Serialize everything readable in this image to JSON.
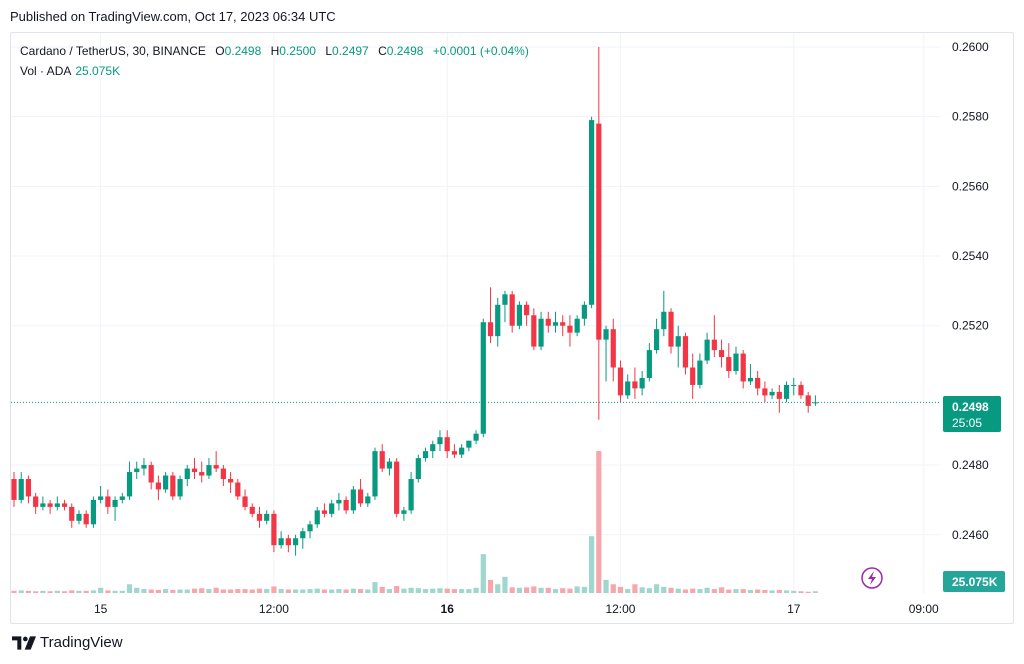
{
  "header": {
    "published": "Published on TradingView.com, Oct 17, 2023 06:34 UTC"
  },
  "legend": {
    "symbol": "Cardano / TetherUS, 30, BINANCE",
    "o_label": "O",
    "o_value": "0.2498",
    "h_label": "H",
    "h_value": "0.2500",
    "l_label": "L",
    "l_value": "0.2497",
    "c_label": "C",
    "c_value": "0.2498",
    "change": "+0.0001 (+0.04%)",
    "vol_label": "Vol · ADA",
    "vol_value": "25.075K"
  },
  "badges": {
    "price": "0.2498",
    "countdown": "25:05",
    "volume": "25.075K"
  },
  "brand": {
    "name": "TradingView"
  },
  "colors": {
    "up": "#089981",
    "down": "#f23645",
    "up_vol": "#9fd6cd",
    "down_vol": "#f7a6ac",
    "grid": "#f0f3fa",
    "text": "#131722",
    "flash": "#9c27b0"
  },
  "icons": {
    "flash": "lightning-icon",
    "logo": "tradingview-logo-icon"
  },
  "chart_data": {
    "type": "candlestick",
    "y_ticks": [
      "0.2600",
      "0.2580",
      "0.2560",
      "0.2540",
      "0.2520",
      "0.2480",
      "0.2460"
    ],
    "ylim": [
      0.2443,
      0.2604
    ],
    "x_ticks": [
      {
        "label": "15",
        "bold": false,
        "i": 12
      },
      {
        "label": "12:00",
        "bold": false,
        "i": 36
      },
      {
        "label": "16",
        "bold": true,
        "i": 60
      },
      {
        "label": "12:00",
        "bold": false,
        "i": 84
      },
      {
        "label": "17",
        "bold": false,
        "i": 108
      },
      {
        "label": "09:00",
        "bold": false,
        "i": 126
      }
    ],
    "last_price": 0.2498,
    "candles": [
      [
        0.2476,
        0.2478,
        0.2468,
        0.247
      ],
      [
        0.247,
        0.2478,
        0.2469,
        0.2476
      ],
      [
        0.2476,
        0.2477,
        0.2469,
        0.2471
      ],
      [
        0.2471,
        0.2472,
        0.2466,
        0.2468
      ],
      [
        0.2468,
        0.2471,
        0.2467,
        0.2469
      ],
      [
        0.2469,
        0.247,
        0.2466,
        0.2468
      ],
      [
        0.2468,
        0.2471,
        0.2467,
        0.2469
      ],
      [
        0.2469,
        0.247,
        0.2467,
        0.2468
      ],
      [
        0.2468,
        0.2469,
        0.2462,
        0.2464
      ],
      [
        0.2464,
        0.2467,
        0.2463,
        0.2466
      ],
      [
        0.2466,
        0.2467,
        0.2462,
        0.2463
      ],
      [
        0.2463,
        0.2471,
        0.2462,
        0.247
      ],
      [
        0.247,
        0.2474,
        0.2469,
        0.2471
      ],
      [
        0.2471,
        0.2473,
        0.2466,
        0.2468
      ],
      [
        0.2468,
        0.2471,
        0.2464,
        0.247
      ],
      [
        0.247,
        0.2472,
        0.2469,
        0.2471
      ],
      [
        0.2471,
        0.2481,
        0.247,
        0.2478
      ],
      [
        0.2478,
        0.2481,
        0.2476,
        0.2479
      ],
      [
        0.2479,
        0.2482,
        0.2477,
        0.248
      ],
      [
        0.248,
        0.2481,
        0.2473,
        0.2475
      ],
      [
        0.2475,
        0.2477,
        0.247,
        0.2473
      ],
      [
        0.2473,
        0.2478,
        0.2472,
        0.2477
      ],
      [
        0.2477,
        0.2478,
        0.247,
        0.2471
      ],
      [
        0.2471,
        0.2477,
        0.247,
        0.2476
      ],
      [
        0.2476,
        0.248,
        0.2474,
        0.2479
      ],
      [
        0.2479,
        0.2482,
        0.2476,
        0.2478
      ],
      [
        0.2478,
        0.2481,
        0.2475,
        0.2477
      ],
      [
        0.2477,
        0.2482,
        0.2476,
        0.248
      ],
      [
        0.248,
        0.2484,
        0.2478,
        0.2479
      ],
      [
        0.2479,
        0.248,
        0.2474,
        0.2476
      ],
      [
        0.2476,
        0.2478,
        0.2472,
        0.2475
      ],
      [
        0.2475,
        0.2476,
        0.247,
        0.2471
      ],
      [
        0.2471,
        0.2473,
        0.2467,
        0.2468
      ],
      [
        0.2468,
        0.2469,
        0.2465,
        0.2466
      ],
      [
        0.2466,
        0.2468,
        0.2462,
        0.2464
      ],
      [
        0.2464,
        0.2467,
        0.2463,
        0.2466
      ],
      [
        0.2466,
        0.2467,
        0.2455,
        0.2457
      ],
      [
        0.2457,
        0.2461,
        0.2456,
        0.2459
      ],
      [
        0.2459,
        0.246,
        0.2455,
        0.2457
      ],
      [
        0.2457,
        0.246,
        0.2454,
        0.2459
      ],
      [
        0.2459,
        0.2462,
        0.2456,
        0.2461
      ],
      [
        0.2461,
        0.2464,
        0.2459,
        0.2463
      ],
      [
        0.2463,
        0.2468,
        0.2462,
        0.2467
      ],
      [
        0.2467,
        0.2469,
        0.2465,
        0.2466
      ],
      [
        0.2466,
        0.247,
        0.2465,
        0.2469
      ],
      [
        0.2469,
        0.2472,
        0.2467,
        0.247
      ],
      [
        0.247,
        0.2471,
        0.2466,
        0.2467
      ],
      [
        0.2467,
        0.2474,
        0.2466,
        0.2473
      ],
      [
        0.2473,
        0.2476,
        0.2468,
        0.2469
      ],
      [
        0.2469,
        0.2472,
        0.2468,
        0.2471
      ],
      [
        0.2471,
        0.2485,
        0.247,
        0.2484
      ],
      [
        0.2484,
        0.2486,
        0.2478,
        0.2479
      ],
      [
        0.2479,
        0.2482,
        0.2477,
        0.2481
      ],
      [
        0.2481,
        0.2482,
        0.2465,
        0.2466
      ],
      [
        0.2466,
        0.2468,
        0.2464,
        0.2467
      ],
      [
        0.2467,
        0.2478,
        0.2466,
        0.2476
      ],
      [
        0.2476,
        0.2483,
        0.2475,
        0.2482
      ],
      [
        0.2482,
        0.2485,
        0.2481,
        0.2484
      ],
      [
        0.2484,
        0.2487,
        0.2482,
        0.2486
      ],
      [
        0.2486,
        0.249,
        0.2484,
        0.2488
      ],
      [
        0.2488,
        0.249,
        0.2482,
        0.2484
      ],
      [
        0.2484,
        0.2486,
        0.2482,
        0.2483
      ],
      [
        0.2483,
        0.2486,
        0.2482,
        0.2485
      ],
      [
        0.2485,
        0.2487,
        0.2484,
        0.2487
      ],
      [
        0.2487,
        0.249,
        0.2486,
        0.2489
      ],
      [
        0.2489,
        0.2522,
        0.2488,
        0.2521
      ],
      [
        0.2521,
        0.2531,
        0.2515,
        0.2517
      ],
      [
        0.2517,
        0.2528,
        0.2514,
        0.2526
      ],
      [
        0.2526,
        0.253,
        0.2521,
        0.2529
      ],
      [
        0.2529,
        0.253,
        0.2518,
        0.252
      ],
      [
        0.252,
        0.2527,
        0.2519,
        0.2526
      ],
      [
        0.2526,
        0.2527,
        0.252,
        0.2523
      ],
      [
        0.2523,
        0.2525,
        0.2513,
        0.2514
      ],
      [
        0.2514,
        0.2524,
        0.2513,
        0.2522
      ],
      [
        0.2522,
        0.2524,
        0.2518,
        0.252
      ],
      [
        0.252,
        0.2524,
        0.2518,
        0.2521
      ],
      [
        0.2521,
        0.2523,
        0.2517,
        0.252
      ],
      [
        0.252,
        0.2523,
        0.2514,
        0.2518
      ],
      [
        0.2518,
        0.2523,
        0.2517,
        0.2522
      ],
      [
        0.2522,
        0.2527,
        0.252,
        0.2526
      ],
      [
        0.2526,
        0.258,
        0.2525,
        0.2579
      ],
      [
        0.2578,
        0.26,
        0.2493,
        0.2516
      ],
      [
        0.2516,
        0.252,
        0.2504,
        0.2519
      ],
      [
        0.2519,
        0.2522,
        0.2504,
        0.2508
      ],
      [
        0.2508,
        0.251,
        0.2498,
        0.25
      ],
      [
        0.25,
        0.2506,
        0.2499,
        0.2504
      ],
      [
        0.2504,
        0.2508,
        0.2499,
        0.2502
      ],
      [
        0.2502,
        0.2507,
        0.25,
        0.2505
      ],
      [
        0.2505,
        0.2515,
        0.2504,
        0.2513
      ],
      [
        0.2513,
        0.2522,
        0.2512,
        0.2519
      ],
      [
        0.2519,
        0.253,
        0.2517,
        0.2524
      ],
      [
        0.2524,
        0.2525,
        0.2512,
        0.2514
      ],
      [
        0.2514,
        0.252,
        0.2508,
        0.2517
      ],
      [
        0.2517,
        0.2518,
        0.2506,
        0.2508
      ],
      [
        0.2508,
        0.2512,
        0.2499,
        0.2503
      ],
      [
        0.2503,
        0.2512,
        0.2502,
        0.251
      ],
      [
        0.251,
        0.2518,
        0.2509,
        0.2516
      ],
      [
        0.2516,
        0.2523,
        0.2511,
        0.2513
      ],
      [
        0.2513,
        0.2516,
        0.2508,
        0.2511
      ],
      [
        0.2511,
        0.2515,
        0.2505,
        0.2507
      ],
      [
        0.2507,
        0.2514,
        0.2506,
        0.2512
      ],
      [
        0.2512,
        0.2513,
        0.2502,
        0.2504
      ],
      [
        0.2504,
        0.2509,
        0.2503,
        0.2505
      ],
      [
        0.2505,
        0.2507,
        0.25,
        0.2502
      ],
      [
        0.2502,
        0.2504,
        0.2498,
        0.25
      ],
      [
        0.25,
        0.2502,
        0.2499,
        0.2501
      ],
      [
        0.2501,
        0.2503,
        0.2495,
        0.2499
      ],
      [
        0.2499,
        0.2504,
        0.2498,
        0.2503
      ],
      [
        0.2503,
        0.2505,
        0.25,
        0.2503
      ],
      [
        0.2503,
        0.2504,
        0.2499,
        0.25
      ],
      [
        0.25,
        0.2501,
        0.2495,
        0.2497
      ],
      [
        0.2498,
        0.25,
        0.2497,
        0.2498
      ]
    ],
    "volume": [
      0.5,
      0.6,
      0.5,
      0.4,
      0.5,
      0.4,
      0.5,
      0.4,
      0.6,
      0.5,
      0.5,
      0.6,
      1.2,
      0.6,
      0.5,
      0.5,
      2.0,
      1.2,
      0.9,
      0.8,
      0.7,
      0.9,
      0.7,
      0.8,
      0.8,
      1.0,
      1.1,
      0.9,
      1.2,
      0.8,
      0.8,
      0.9,
      0.9,
      0.8,
      1.0,
      0.9,
      1.5,
      0.9,
      0.8,
      0.8,
      0.8,
      0.9,
      1.0,
      0.8,
      0.8,
      0.9,
      0.8,
      1.0,
      0.9,
      0.8,
      2.5,
      1.4,
      0.9,
      1.6,
      1.0,
      1.2,
      1.1,
      0.9,
      1.0,
      1.1,
      1.0,
      0.9,
      0.9,
      0.9,
      1.2,
      8.9,
      3.0,
      2.0,
      3.7,
      1.3,
      1.2,
      1.3,
      1.5,
      1.2,
      1.2,
      0.9,
      1.1,
      1.0,
      1.5,
      1.4,
      13.0,
      32.5,
      3.0,
      2.0,
      1.4,
      0.9,
      2.0,
      1.3,
      1.1,
      2.0,
      1.4,
      1.2,
      1.0,
      0.8,
      1.0,
      0.9,
      1.2,
      0.9,
      1.3,
      0.8,
      0.9,
      0.9,
      0.7,
      0.8,
      0.7,
      0.6,
      0.7,
      0.6,
      0.5,
      0.4,
      0.3,
      0.4
    ]
  }
}
